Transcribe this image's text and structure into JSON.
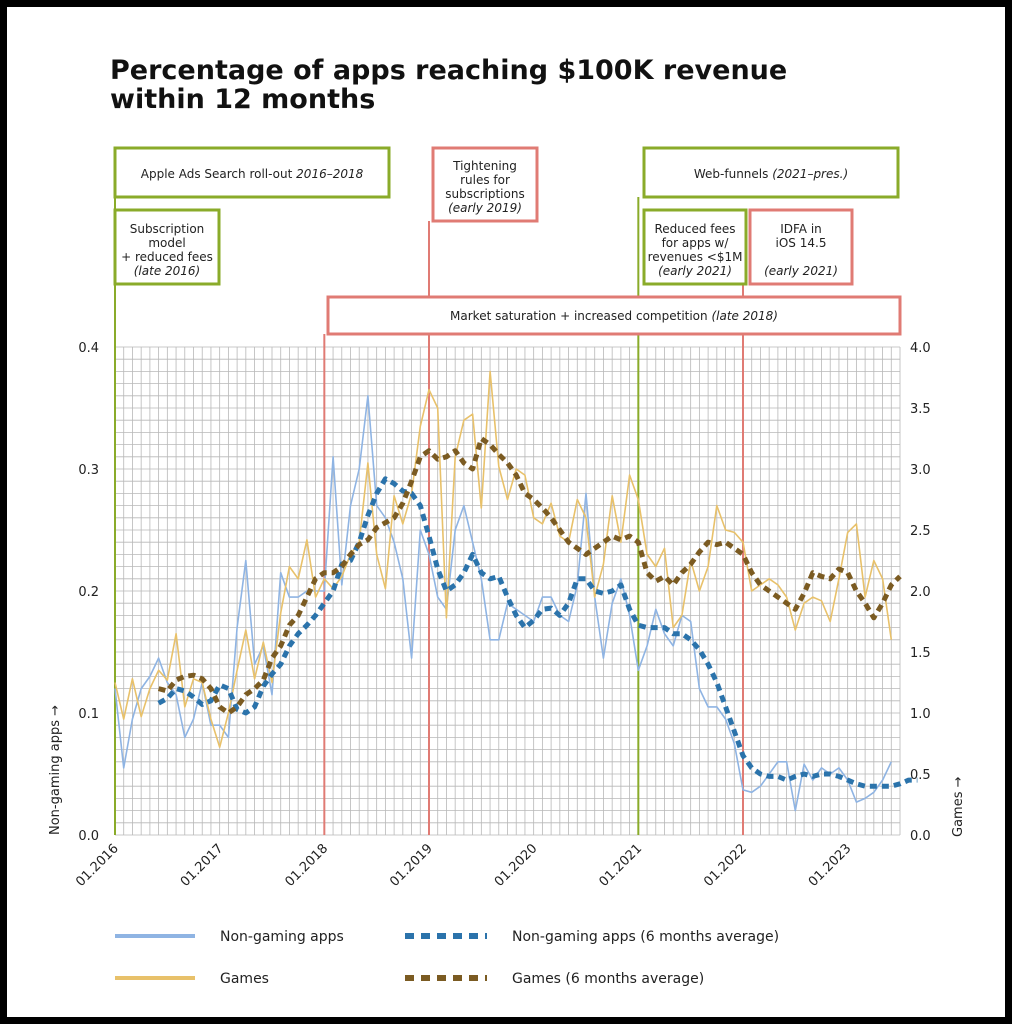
{
  "colors": {
    "non_gaming": "#8fb4e3",
    "games": "#e8c16a",
    "non_gaming_avg": "#2b73ab",
    "games_avg": "#7b5b22",
    "green_box": "#8aab2a",
    "red_box": "#e07b74"
  },
  "chart_data": {
    "type": "line",
    "title": [
      "Percentage of apps reaching $100K revenue",
      "within 12 months"
    ],
    "ylabel_left": "Non-gaming apps →",
    "ylabel_right": "Games →",
    "y_left_range": [
      0,
      0.4
    ],
    "y_right_range": [
      0,
      4.0
    ],
    "y_left_ticks": [
      "0.0",
      "0.1",
      "0.2",
      "0.3",
      "0.4"
    ],
    "y_right_ticks": [
      "0.0",
      "0.5",
      "1.0",
      "1.5",
      "2.0",
      "2.5",
      "3.0",
      "3.5",
      "4.0"
    ],
    "x_ticks": [
      "01.2016",
      "01.2017",
      "01.2018",
      "01.2019",
      "01.2020",
      "01.2021",
      "01.2022",
      "01.2023"
    ],
    "x_start": "01.2016",
    "months": 90,
    "grid": true,
    "series": [
      {
        "name": "Non-gaming apps",
        "axis": "left",
        "start_month": 0,
        "values": [
          0.12,
          0.055,
          0.095,
          0.12,
          0.13,
          0.145,
          0.125,
          0.115,
          0.08,
          0.095,
          0.125,
          0.09,
          0.09,
          0.08,
          0.17,
          0.225,
          0.14,
          0.155,
          0.115,
          0.215,
          0.195,
          0.195,
          0.2,
          0.2,
          0.2,
          0.31,
          0.205,
          0.27,
          0.3,
          0.36,
          0.27,
          0.26,
          0.24,
          0.21,
          0.145,
          0.25,
          0.23,
          0.195,
          0.185,
          0.25,
          0.27,
          0.24,
          0.21,
          0.16,
          0.16,
          0.19,
          0.185,
          0.18,
          0.175,
          0.195,
          0.195,
          0.18,
          0.175,
          0.205,
          0.28,
          0.195,
          0.145,
          0.19,
          0.21,
          0.18,
          0.135,
          0.155,
          0.185,
          0.165,
          0.155,
          0.18,
          0.175,
          0.12,
          0.105,
          0.105,
          0.095,
          0.075,
          0.037,
          0.035,
          0.04,
          0.05,
          0.06,
          0.06,
          0.02,
          0.058,
          0.045,
          0.055,
          0.05,
          0.055,
          0.045,
          0.027,
          0.03,
          0.035,
          0.045,
          0.06
        ]
      },
      {
        "name": "Games",
        "axis": "right",
        "start_month": 0,
        "values": [
          1.25,
          0.95,
          1.28,
          0.97,
          1.2,
          1.35,
          1.27,
          1.65,
          1.05,
          1.28,
          1.25,
          0.95,
          0.72,
          1.0,
          1.35,
          1.68,
          1.28,
          1.58,
          1.25,
          1.82,
          2.2,
          2.1,
          2.42,
          1.95,
          2.1,
          2.02,
          2.12,
          2.3,
          2.4,
          3.05,
          2.3,
          2.02,
          2.78,
          2.55,
          2.8,
          3.35,
          3.65,
          3.5,
          1.78,
          3.1,
          3.4,
          3.45,
          2.68,
          3.8,
          3.02,
          2.75,
          3.0,
          2.95,
          2.6,
          2.55,
          2.72,
          2.45,
          2.4,
          2.75,
          2.6,
          1.95,
          2.22,
          2.78,
          2.4,
          2.95,
          2.75,
          2.3,
          2.2,
          2.35,
          1.7,
          1.8,
          2.25,
          2.0,
          2.2,
          2.7,
          2.5,
          2.48,
          2.4,
          2.0,
          2.05,
          2.1,
          2.05,
          1.95,
          1.68,
          1.9,
          1.95,
          1.92,
          1.75,
          2.1,
          2.48,
          2.55,
          1.95,
          2.25,
          2.1,
          1.6
        ]
      },
      {
        "name": "Non-gaming apps (6 months average)",
        "axis": "left",
        "start_month": 5,
        "values": [
          0.108,
          0.112,
          0.12,
          0.118,
          0.113,
          0.107,
          0.11,
          0.123,
          0.12,
          0.103,
          0.1,
          0.105,
          0.122,
          0.132,
          0.14,
          0.155,
          0.165,
          0.172,
          0.18,
          0.19,
          0.2,
          0.222,
          0.225,
          0.24,
          0.262,
          0.28,
          0.292,
          0.288,
          0.282,
          0.28,
          0.27,
          0.245,
          0.218,
          0.2,
          0.205,
          0.215,
          0.23,
          0.215,
          0.21,
          0.212,
          0.195,
          0.18,
          0.17,
          0.176,
          0.185,
          0.186,
          0.18,
          0.19,
          0.21,
          0.21,
          0.2,
          0.198,
          0.2,
          0.205,
          0.185,
          0.172,
          0.17,
          0.17,
          0.17,
          0.165,
          0.165,
          0.16,
          0.152,
          0.14,
          0.125,
          0.105,
          0.085,
          0.065,
          0.055,
          0.05,
          0.048,
          0.048,
          0.045,
          0.048,
          0.05,
          0.048,
          0.05,
          0.05,
          0.048,
          0.045,
          0.042,
          0.04,
          0.04,
          0.04,
          0.04,
          0.042,
          0.045,
          0.045
        ]
      },
      {
        "name": "Games (6 months average)",
        "axis": "right",
        "start_month": 5,
        "values": [
          1.2,
          1.18,
          1.27,
          1.3,
          1.31,
          1.28,
          1.2,
          1.05,
          1.0,
          1.05,
          1.15,
          1.2,
          1.27,
          1.45,
          1.55,
          1.72,
          1.8,
          1.95,
          2.1,
          2.15,
          2.15,
          2.2,
          2.3,
          2.38,
          2.42,
          2.52,
          2.56,
          2.6,
          2.72,
          2.9,
          3.1,
          3.15,
          3.08,
          3.1,
          3.15,
          3.05,
          3.0,
          3.25,
          3.2,
          3.12,
          3.05,
          2.95,
          2.8,
          2.75,
          2.68,
          2.6,
          2.5,
          2.4,
          2.35,
          2.3,
          2.35,
          2.4,
          2.45,
          2.42,
          2.45,
          2.4,
          2.15,
          2.08,
          2.12,
          2.05,
          2.15,
          2.22,
          2.32,
          2.4,
          2.38,
          2.4,
          2.35,
          2.3,
          2.15,
          2.05,
          2.0,
          1.95,
          1.9,
          1.85,
          1.98,
          2.15,
          2.12,
          2.1,
          2.18,
          2.15,
          2.0,
          1.9,
          1.78,
          1.9,
          2.05,
          2.12
        ]
      }
    ],
    "annotations": [
      {
        "text": "Apple Ads Search roll-out",
        "em": "2016–2018",
        "style": "green"
      },
      {
        "text": "Subscription model + reduced fees",
        "em": "(late 2016)",
        "style": "green"
      },
      {
        "text": "Tightening rules for subscriptions",
        "em": "(early 2019)",
        "style": "red"
      },
      {
        "text": "Market saturation + increased competition",
        "em": "(late 2018)",
        "style": "red"
      },
      {
        "text": "Web-funnels",
        "em": "(2021–pres.)",
        "style": "green"
      },
      {
        "text": "Reduced fees for apps w/ revenues <$1M",
        "em": "(early 2021)",
        "style": "green"
      },
      {
        "text": "IDFA in iOS 14.5",
        "em": "(early 2021)",
        "style": "red"
      }
    ],
    "legend": [
      "Non-gaming apps",
      "Non-gaming apps (6 months average)",
      "Games",
      "Games (6 months average)"
    ],
    "legend_position": "bottom"
  }
}
